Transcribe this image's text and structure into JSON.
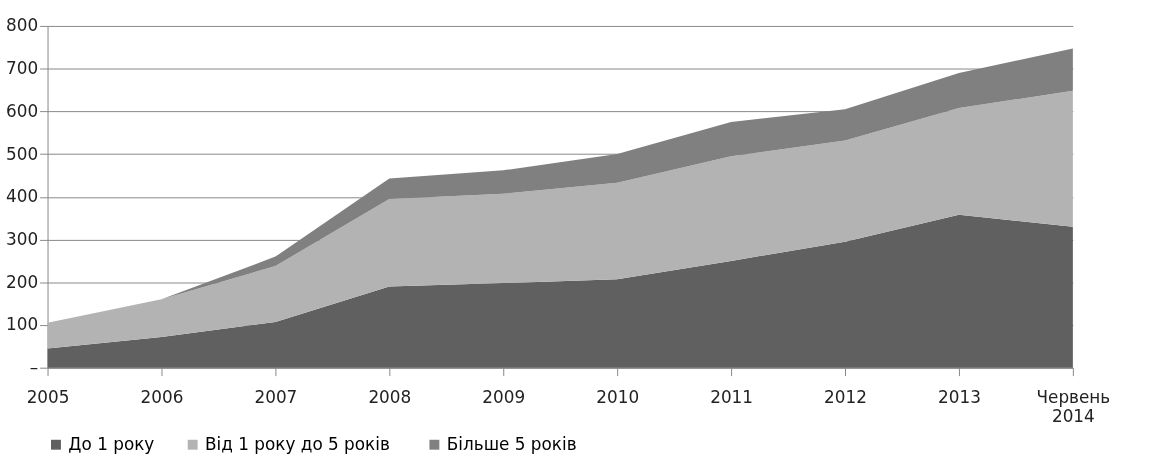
{
  "chart_data": {
    "type": "area",
    "stacked": true,
    "categories": [
      "2005",
      "2006",
      "2007",
      "2008",
      "2009",
      "2010",
      "2011",
      "2012",
      "2013",
      "Червень 2014"
    ],
    "series": [
      {
        "name": "До 1 року",
        "color": "#606060",
        "values": [
          45,
          72,
          107,
          190,
          198,
          207,
          250,
          295,
          358,
          330
        ]
      },
      {
        "name": "Від  1 року до 5 років",
        "color": "#b3b3b3",
        "values": [
          60,
          88,
          131,
          205,
          209,
          226,
          245,
          237,
          250,
          318
        ]
      },
      {
        "name": "Більше 5 років",
        "color": "#808080",
        "values": [
          0,
          0,
          22,
          48,
          55,
          67,
          80,
          73,
          82,
          99
        ]
      }
    ],
    "ylim": [
      0,
      800
    ],
    "yticks": [
      {
        "value": 0,
        "label": "–"
      },
      100,
      200,
      300,
      400,
      500,
      600,
      700,
      800
    ],
    "grid": "y",
    "legend": "bottom"
  }
}
